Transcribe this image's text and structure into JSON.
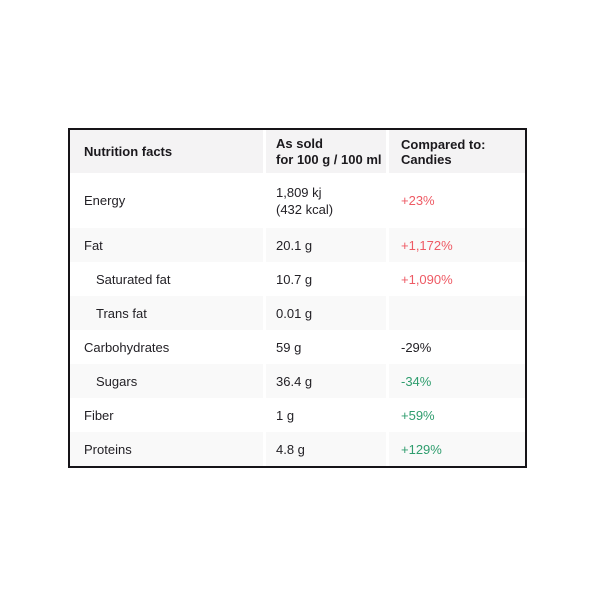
{
  "colors": {
    "red": "#ee5a64",
    "green": "#2f9d6e",
    "neutral": "#232126",
    "border": "#161418",
    "header_bg": "#f4f3f4",
    "stripe_bg": "#f9f9f9"
  },
  "table": {
    "header": {
      "nutrition_facts": "Nutrition facts",
      "as_sold_line1": "As sold",
      "as_sold_line2": "for 100 g / 100 ml",
      "compared_to": "Compared to: Candies"
    },
    "rows": [
      {
        "label": "Energy",
        "value": "1,809 kj",
        "value2": "(432 kcal)",
        "comparison": "+23%",
        "tone": "red",
        "indent": false
      },
      {
        "label": "Fat",
        "value": "20.1 g",
        "comparison": "+1,172%",
        "tone": "red",
        "indent": false
      },
      {
        "label": "Saturated fat",
        "value": "10.7 g",
        "comparison": "+1,090%",
        "tone": "red",
        "indent": true
      },
      {
        "label": "Trans fat",
        "value": "0.01 g",
        "comparison": "",
        "tone": "neutral",
        "indent": true
      },
      {
        "label": "Carbohydrates",
        "value": "59 g",
        "comparison": "-29%",
        "tone": "neutral",
        "indent": false
      },
      {
        "label": "Sugars",
        "value": "36.4 g",
        "comparison": "-34%",
        "tone": "green",
        "indent": true
      },
      {
        "label": "Fiber",
        "value": "1 g",
        "comparison": "+59%",
        "tone": "green",
        "indent": false
      },
      {
        "label": "Proteins",
        "value": "4.8 g",
        "comparison": "+129%",
        "tone": "green",
        "indent": false
      }
    ]
  }
}
